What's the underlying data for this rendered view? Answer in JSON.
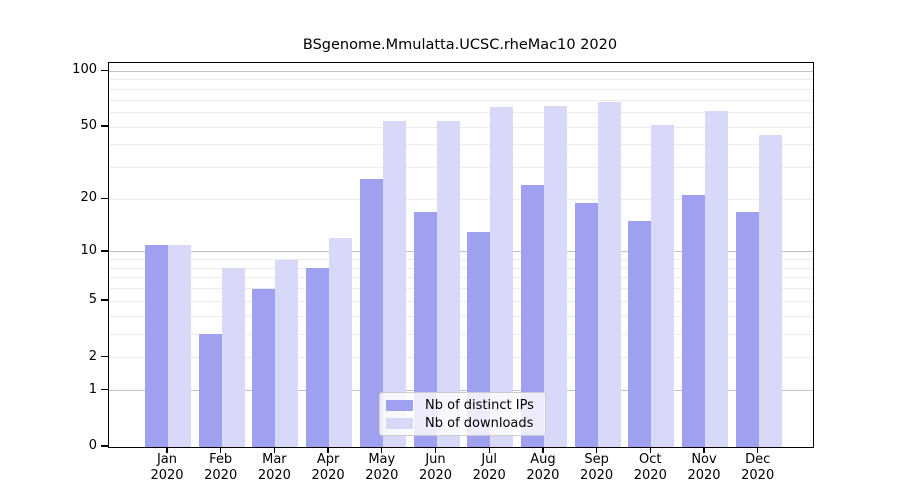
{
  "chart_data": {
    "type": "bar",
    "title": "BSgenome.Mmulatta.UCSC.rheMac10 2020",
    "categories": [
      "Jan",
      "Feb",
      "Mar",
      "Apr",
      "May",
      "Jun",
      "Jul",
      "Aug",
      "Sep",
      "Oct",
      "Nov",
      "Dec"
    ],
    "category_year": "2020",
    "series": [
      {
        "name": "Nb of distinct IPs",
        "color": "#a0a0f0",
        "values": [
          11,
          3,
          6,
          8,
          26,
          17,
          13,
          24,
          19,
          15,
          21,
          17
        ]
      },
      {
        "name": "Nb of downloads",
        "color": "#d8d8f8",
        "values": [
          11,
          8,
          9,
          12,
          54,
          54,
          64,
          65,
          68,
          51,
          61,
          45
        ]
      }
    ],
    "xlabel": "",
    "ylabel": "",
    "yscale": "log1p",
    "ylim": [
      0,
      111
    ],
    "yticks": [
      0,
      1,
      2,
      5,
      10,
      20,
      50,
      100
    ],
    "grid": "horizontal",
    "gridlines_major": [
      1,
      10,
      100
    ],
    "gridlines_minor": [
      2,
      3,
      4,
      5,
      6,
      7,
      8,
      9,
      20,
      30,
      40,
      50,
      60,
      70,
      80,
      90
    ],
    "legend_position": "bottom-center-inside"
  },
  "colors": {
    "bar_distinct_ips": "#a0a0f0",
    "bar_downloads": "#d8d8f8",
    "gridline_major": "#c2c2c2",
    "gridline_minor": "#ececec",
    "axis": "#000000",
    "legend_border": "#cccccc"
  }
}
